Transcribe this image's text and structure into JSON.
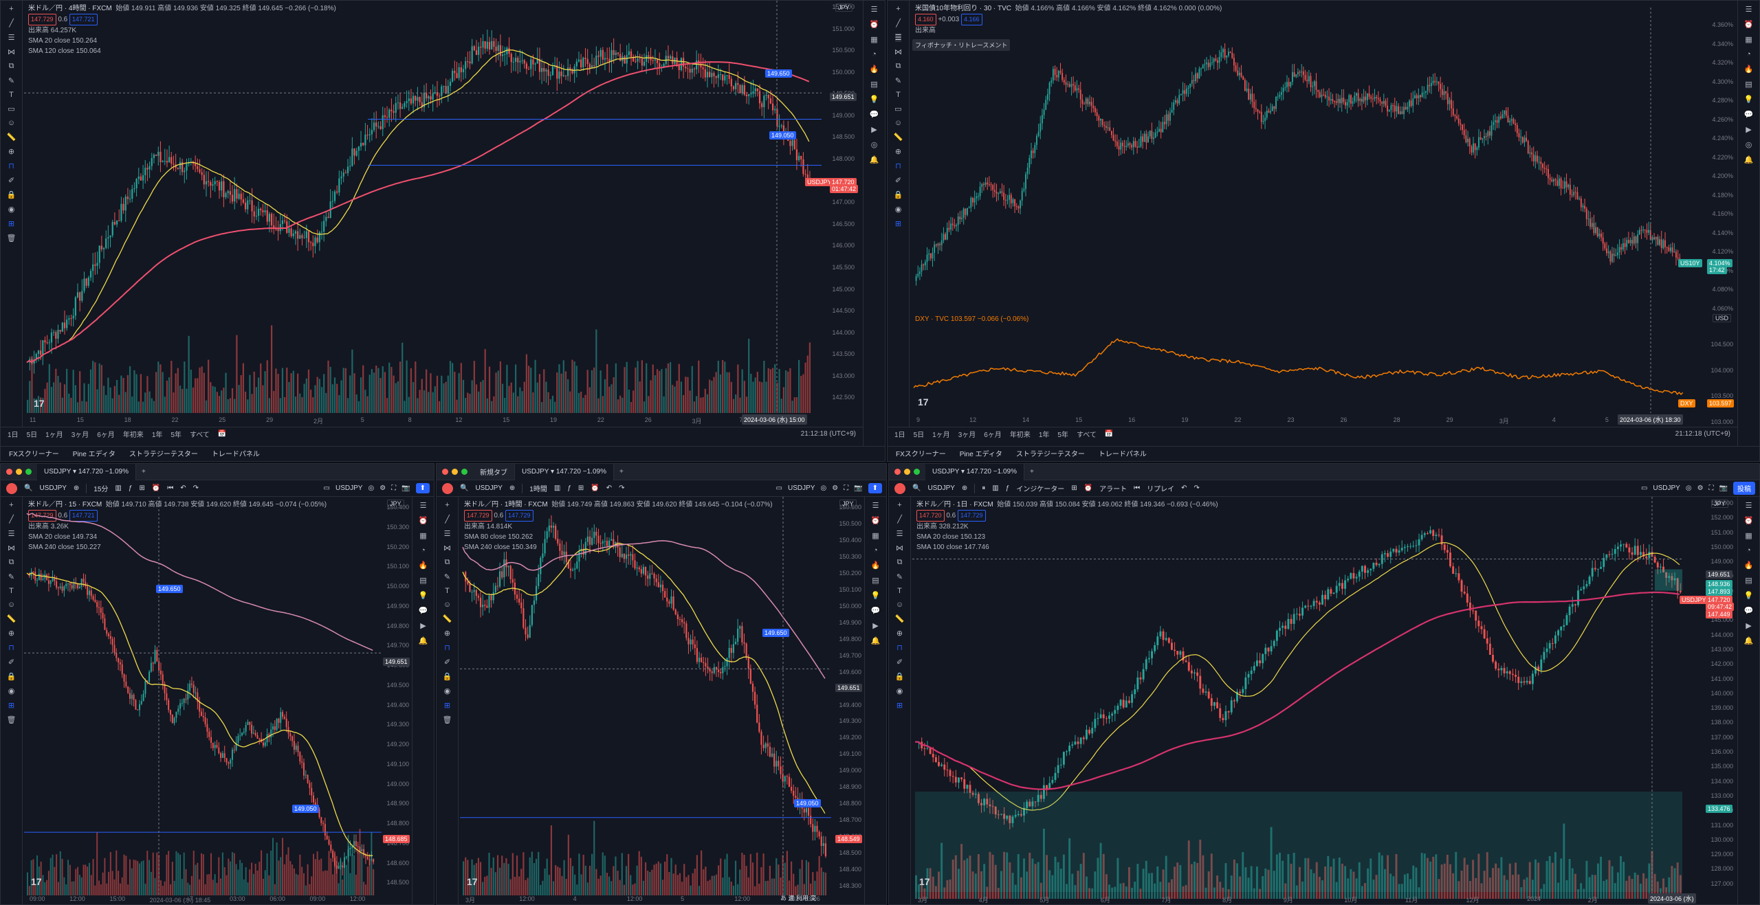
{
  "colors": {
    "up": "#26a69a",
    "down": "#ef5350",
    "sma_yellow": "#f0dc4a",
    "sma_red": "#f0506e",
    "sma_magenta": "#d6336c",
    "orange": "#f57c00",
    "blue": "#2962ff",
    "bg": "#131722"
  },
  "tl": {
    "title": "米ドル／円 · 4時間 · FXCM",
    "ohlc": "始値 149.911  高値 149.936  安値 149.325  終値 149.645  −0.266 (−0.18%)",
    "bid": "147.729",
    "spread": "0.6",
    "ask": "147.721",
    "volume": "出来高  64.257K",
    "sma1": "SMA 20 close  150.264",
    "sma2": "SMA 120 close  150.064",
    "currency": "JPY",
    "yticks": [
      "151.500",
      "151.000",
      "150.500",
      "150.000",
      "149.500",
      "149.000",
      "148.500",
      "148.000",
      "147.500",
      "147.000",
      "146.500",
      "146.000",
      "145.500",
      "145.000",
      "144.500",
      "144.000",
      "143.500",
      "143.000",
      "142.500"
    ],
    "xticks": [
      "11",
      "15",
      "18",
      "22",
      "25",
      "29",
      "2月",
      "5",
      "8",
      "12",
      "15",
      "19",
      "22",
      "26",
      "3月",
      "7",
      "11"
    ],
    "flags": {
      "a": "149.650",
      "b": "149.050",
      "cur": "147.720",
      "curtime": "01:47:42",
      "sym": "USDJPY",
      "crossprice": "149.651"
    },
    "date": "2024-03-06 (水)  15:00",
    "ranges": [
      "1日",
      "5日",
      "1ヶ月",
      "3ヶ月",
      "6ヶ月",
      "年初来",
      "1年",
      "5年",
      "すべて"
    ],
    "time": "21:12:18 (UTC+9)",
    "panel": [
      "FXスクリーナー",
      "Pine エディタ",
      "ストラテジーテスター",
      "トレードパネル"
    ]
  },
  "tr": {
    "title": "米国債10年物利回り · 30 · TVC",
    "ohlc": "始値 4.166%  高値 4.166%  安値 4.162%  終値 4.162%  0.000 (0.00%)",
    "bid": "4.160",
    "chg": "+0.003",
    "ask": "4.166",
    "volume": "出来高",
    "tooltip": "フィボナッチ・リトレースメント",
    "dxy": "DXY · TVC  103.597  −0.066 (−0.06%)",
    "currency": "USD",
    "yticks": [
      "4.360%",
      "4.340%",
      "4.320%",
      "4.300%",
      "4.280%",
      "4.260%",
      "4.240%",
      "4.220%",
      "4.200%",
      "4.180%",
      "4.160%",
      "4.140%",
      "4.120%",
      "4.100%",
      "4.080%",
      "4.060%"
    ],
    "dxyticks": [
      "104.500",
      "104.000",
      "103.500",
      "103.000"
    ],
    "xticks": [
      "9",
      "12",
      "14",
      "15",
      "16",
      "19",
      "22",
      "23",
      "26",
      "28",
      "29",
      "3月",
      "4",
      "5",
      "8"
    ],
    "flags": {
      "us10y": "US10Y",
      "val": "4.104%",
      "time": "17:42",
      "dxy": "DXY",
      "dxyval": "103.597"
    },
    "date": "2024-03-06 (水)  18:30",
    "ranges": [
      "1日",
      "5日",
      "1ヶ月",
      "3ヶ月",
      "6ヶ月",
      "年初来",
      "1年",
      "5年",
      "すべて"
    ],
    "time": "21:12:18 (UTC+9)",
    "panel": [
      "FXスクリーナー",
      "Pine エディタ",
      "ストラテジーテスター",
      "トレードパネル"
    ]
  },
  "bl": {
    "tab": "USDJPY ▾ 147.720 −1.09%",
    "symbol": "USDJPY",
    "interval": "15分",
    "title": "米ドル／円 · 15 · FXCM",
    "ohlc": "始値 149.710  高値 149.738  安値 149.620  終値 149.645  −0.074 (−0.05%)",
    "bid": "147.729",
    "spread": "0.6",
    "ask": "147.721",
    "volume": "出来高  3.26K",
    "sma1": "SMA 20 close  149.734",
    "sma2": "SMA 240 close  150.227",
    "currency": "JPY",
    "yticks": [
      "150.400",
      "150.300",
      "150.200",
      "150.100",
      "150.000",
      "149.900",
      "149.800",
      "149.700",
      "149.600",
      "149.500",
      "149.400",
      "149.300",
      "149.200",
      "149.100",
      "149.000",
      "148.900",
      "148.800",
      "148.700",
      "148.600",
      "148.500"
    ],
    "xticks": [
      "09:00",
      "12:00",
      "15:00",
      "2024-03-06 (水)  18:45",
      "7",
      "03:00",
      "06:00",
      "09:00",
      "12:00"
    ],
    "flags": {
      "a": "149.650",
      "b": "149.050",
      "cross": "149.651",
      "cur": "148.685"
    }
  },
  "bm": {
    "tab1": "新規タブ",
    "tab2": "USDJPY ▾ 147.720 −1.09%",
    "symbol": "USDJPY",
    "interval": "1時間",
    "title": "米ドル／円 · 1時間 · FXCM",
    "ohlc": "始値 149.749  高値 149.863  安値 149.620  終値 149.645  −0.104 (−0.07%)",
    "bid": "147.729",
    "spread": "0.6",
    "ask": "147.729",
    "volume": "出来高  14.814K",
    "sma1": "SMA 80 close  150.262",
    "sma2": "SMA 240 close  150.349",
    "currency": "JPY",
    "yticks": [
      "150.600",
      "150.500",
      "150.400",
      "150.300",
      "150.200",
      "150.100",
      "150.000",
      "149.900",
      "149.800",
      "149.700",
      "149.600",
      "149.500",
      "149.400",
      "149.300",
      "149.200",
      "149.100",
      "149.000",
      "148.900",
      "148.800",
      "148.700",
      "148.600",
      "148.500",
      "148.400",
      "148.300"
    ],
    "xticks": [
      "3月",
      "12:00",
      "4",
      "12:00",
      "5",
      "12:00",
      "2024-03-06"
    ],
    "flags": {
      "a": "149.650",
      "b": "149.050",
      "cross": "149.651",
      "cur": "148.549"
    },
    "ime": "あ 連 利用 変"
  },
  "br": {
    "tab": "USDJPY ▾ 147.720 −1.09%",
    "indicator": "インジケーター",
    "alert": "アラート",
    "replay": "リプレイ",
    "publish": "投稿",
    "symbol": "USDJPY",
    "title": "米ドル／円 · 1日 · FXCM",
    "ohlc": "始値 150.039  高値 150.084  安値 149.062  終値 149.346  −0.693 (−0.46%)",
    "bid": "147.720",
    "spread": "0.6",
    "ask": "147.729",
    "volume": "出来高  328.212K",
    "sma1": "SMA 20 close  150.123",
    "sma2": "SMA 100 close  147.746",
    "currency": "JPY",
    "yticks": [
      "153.000",
      "152.000",
      "151.000",
      "150.000",
      "149.000",
      "148.000",
      "147.000",
      "146.000",
      "145.000",
      "144.000",
      "143.000",
      "142.000",
      "141.000",
      "140.000",
      "139.000",
      "138.000",
      "137.000",
      "136.000",
      "135.000",
      "134.000",
      "133.000",
      "132.000",
      "131.000",
      "130.000",
      "129.000",
      "128.000",
      "127.000"
    ],
    "xticks": [
      "3月",
      "4月",
      "5月",
      "6月",
      "7月",
      "8月",
      "9月",
      "10月",
      "11月",
      "12月",
      "2024",
      "2月",
      "3月"
    ],
    "flags": {
      "a": "149.651",
      "b": "148.936",
      "c": "147.893",
      "cur": "147.720",
      "t": "09:47:42",
      "d": "147.449",
      "sym": "USDJPY",
      "e": "133.476"
    },
    "date": "2024-03-06 (水)"
  }
}
